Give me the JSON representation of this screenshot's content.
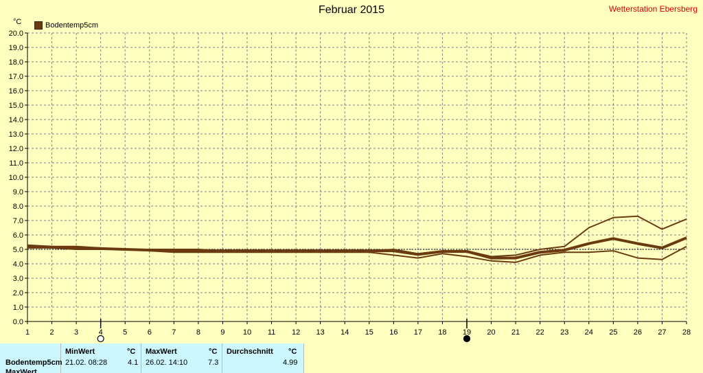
{
  "header": {
    "title": "Februar 2015",
    "station": "Wetterstation Ebersberg",
    "unit": "°C",
    "legend_label": "Bodentemp5cm"
  },
  "colors": {
    "series": "#6b3a10",
    "background": "#ffffc0",
    "grid": "#808080",
    "stats_bg": "#ccf7ff",
    "station_text": "#e00000"
  },
  "chart_data": {
    "type": "line",
    "title": "Februar 2015",
    "ylabel": "°C",
    "xlabel": "",
    "xlim": [
      1,
      28
    ],
    "ylim": [
      0,
      20
    ],
    "x_ticks": [
      1,
      2,
      3,
      4,
      5,
      6,
      7,
      8,
      9,
      10,
      11,
      12,
      13,
      14,
      15,
      16,
      17,
      18,
      19,
      20,
      21,
      22,
      23,
      24,
      25,
      26,
      27,
      28
    ],
    "y_ticks": [
      "0.0",
      "1.0",
      "2.0",
      "3.0",
      "4.0",
      "5.0",
      "6.0",
      "7.0",
      "8.0",
      "9.0",
      "10.0",
      "11.0",
      "12.0",
      "13.0",
      "14.0",
      "15.0",
      "16.0",
      "17.0",
      "18.0",
      "19.0",
      "20.0"
    ],
    "grid": true,
    "legend_position": "top-left",
    "reference_line": 5.0,
    "moon_markers": [
      {
        "day": 4,
        "phase": "full"
      },
      {
        "day": 19,
        "phase": "new"
      }
    ],
    "series": [
      {
        "name": "Bodentemp5cm",
        "role": "max",
        "values": [
          5.3,
          5.2,
          5.2,
          5.1,
          5.0,
          5.0,
          5.0,
          5.0,
          4.9,
          4.9,
          4.9,
          4.9,
          4.9,
          4.9,
          4.9,
          5.0,
          4.7,
          4.9,
          4.9,
          4.5,
          4.6,
          5.0,
          5.2,
          6.5,
          7.2,
          7.3,
          6.4,
          7.1
        ]
      },
      {
        "name": "Bodentemp5cm",
        "role": "mean",
        "values": [
          5.2,
          5.15,
          5.1,
          5.05,
          5.0,
          4.95,
          4.9,
          4.9,
          4.9,
          4.9,
          4.9,
          4.9,
          4.9,
          4.9,
          4.9,
          4.9,
          4.65,
          4.85,
          4.85,
          4.4,
          4.4,
          4.8,
          4.95,
          5.4,
          5.75,
          5.4,
          5.1,
          5.8
        ]
      },
      {
        "name": "Bodentemp5cm",
        "role": "min",
        "values": [
          5.1,
          5.1,
          5.0,
          5.0,
          5.0,
          4.9,
          4.8,
          4.8,
          4.8,
          4.8,
          4.8,
          4.8,
          4.8,
          4.8,
          4.8,
          4.6,
          4.4,
          4.7,
          4.5,
          4.2,
          4.1,
          4.6,
          4.8,
          4.8,
          4.9,
          4.4,
          4.3,
          5.2
        ]
      }
    ]
  },
  "stats": {
    "headers": {
      "min": "MinWert",
      "max": "MaxWert",
      "avg": "Durchschnitt",
      "unit": "°C"
    },
    "rows": [
      {
        "label": "Bodentemp5cm",
        "min_date": "21.02.  08:28",
        "min_val": "4.1",
        "max_date": "26.02.  14:10",
        "max_val": "7.3",
        "avg": "4.99"
      },
      {
        "label": "MaxWert"
      }
    ]
  }
}
